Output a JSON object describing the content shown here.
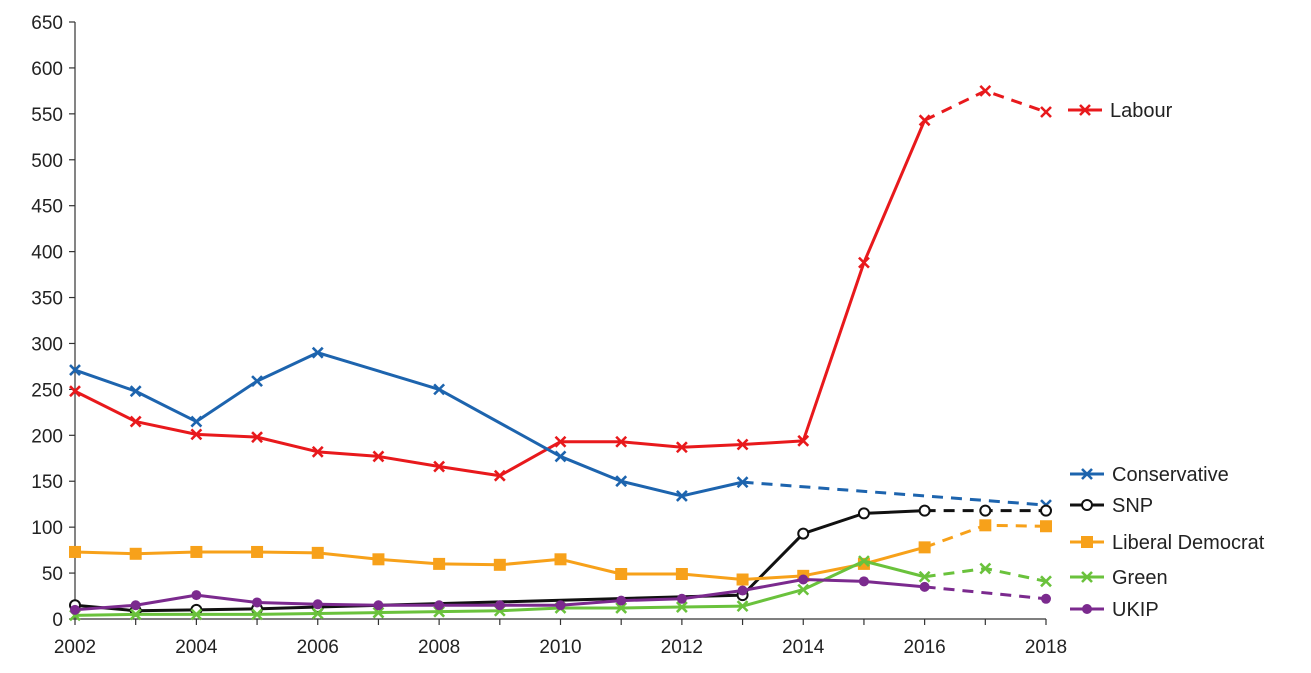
{
  "chart_data": {
    "type": "line",
    "title": "",
    "xlabel": "",
    "ylabel": "",
    "xlim": [
      2002,
      2018
    ],
    "ylim": [
      0,
      650
    ],
    "x_ticks": [
      2002,
      2004,
      2006,
      2008,
      2010,
      2012,
      2014,
      2016,
      2018
    ],
    "y_ticks": [
      0,
      50,
      100,
      150,
      200,
      250,
      300,
      350,
      400,
      450,
      500,
      550,
      600,
      650
    ],
    "grid": false,
    "legend_position": "right",
    "series": [
      {
        "name": "Labour",
        "color": "#e8191c",
        "marker": "x",
        "x": [
          2002,
          2003,
          2004,
          2005,
          2006,
          2007,
          2008,
          2009,
          2010,
          2011,
          2012,
          2013,
          2014,
          2015,
          2016,
          2017,
          2018
        ],
        "values": [
          248,
          215,
          201,
          198,
          182,
          177,
          166,
          156,
          193,
          193,
          187,
          190,
          194,
          388,
          543,
          575,
          552
        ],
        "solid_until": 2016
      },
      {
        "name": "Conservative",
        "color": "#1d64ae",
        "marker": "x",
        "x": [
          2002,
          2003,
          2004,
          2005,
          2006,
          2008,
          2010,
          2011,
          2012,
          2013,
          2018
        ],
        "values": [
          271,
          248,
          215,
          259,
          290,
          250,
          177,
          150,
          134,
          149,
          124
        ],
        "solid_until": 2013
      },
      {
        "name": "SNP",
        "color": "#111111",
        "marker": "circle",
        "x": [
          2002,
          2003,
          2004,
          2005,
          2006,
          2013,
          2014,
          2015,
          2016,
          2017,
          2018
        ],
        "values": [
          15,
          9,
          10,
          11,
          13,
          26,
          93,
          115,
          118,
          118,
          118
        ],
        "solid_until": 2016
      },
      {
        "name": "Liberal Democrat",
        "color": "#f7a11a",
        "marker": "square",
        "x": [
          2002,
          2003,
          2004,
          2005,
          2006,
          2007,
          2008,
          2009,
          2010,
          2011,
          2012,
          2013,
          2014,
          2015,
          2016,
          2017,
          2018
        ],
        "values": [
          73,
          71,
          73,
          73,
          72,
          65,
          60,
          59,
          65,
          49,
          49,
          43,
          47,
          60,
          78,
          102,
          101
        ],
        "solid_until": 2016
      },
      {
        "name": "Green",
        "color": "#6ac23c",
        "marker": "x",
        "x": [
          2002,
          2003,
          2004,
          2005,
          2006,
          2007,
          2008,
          2009,
          2010,
          2011,
          2012,
          2013,
          2014,
          2015,
          2016,
          2017,
          2018
        ],
        "values": [
          4,
          5,
          5,
          5,
          6,
          7,
          8,
          9,
          12,
          12,
          13,
          14,
          32,
          63,
          46,
          55,
          41
        ],
        "solid_until": 2016
      },
      {
        "name": "UKIP",
        "color": "#7b2a8e",
        "marker": "circle",
        "x": [
          2002,
          2003,
          2004,
          2005,
          2006,
          2007,
          2008,
          2009,
          2010,
          2011,
          2012,
          2013,
          2014,
          2015,
          2016,
          2018
        ],
        "values": [
          10,
          15,
          26,
          18,
          16,
          15,
          15,
          15,
          15,
          20,
          22,
          31,
          43,
          41,
          35,
          22
        ],
        "solid_until": 2016
      }
    ],
    "legend": [
      {
        "name": "Labour"
      },
      {
        "name": "Conservative"
      },
      {
        "name": "SNP"
      },
      {
        "name": "Liberal Democrat"
      },
      {
        "name": "Green"
      },
      {
        "name": "UKIP"
      }
    ]
  }
}
